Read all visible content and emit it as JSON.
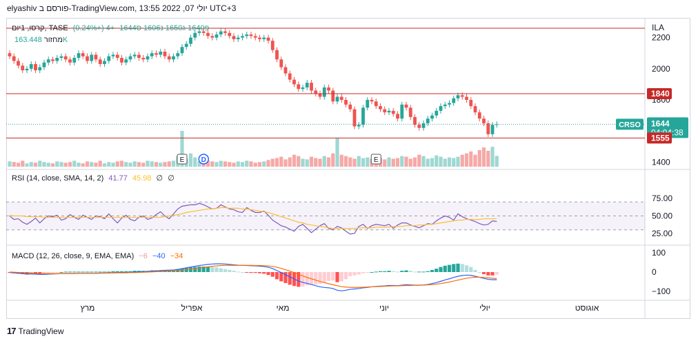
{
  "header": {
    "text": "elyashiv פורסם ב-TradingView.com, יולי 07, 2022 13:55 UTC+3"
  },
  "legend": {
    "symbol": "קרסו, 1יום, TASE",
    "ohlc": "פ1640 ג1650 נ1606 ס1644",
    "change": "+4 (+0.24%)",
    "volume_label": "מחזור",
    "volume_value": "163.448K"
  },
  "rsi_legend": {
    "label": "RSI (14, close, SMA, 14, 2)",
    "rsi": "41.77",
    "sma": "45.98",
    "e1": "∅",
    "e2": "∅"
  },
  "macd_legend": {
    "label": "MACD (12, 26, close, 9, EMA, EMA)",
    "hist": "−6",
    "macd": "−40",
    "signal": "−34"
  },
  "footer": {
    "brand": "TradingView"
  },
  "colors": {
    "up": "#26a69a",
    "down": "#ef5350",
    "rsi": "#7e57c2",
    "rsi_ma": "#fbc02d",
    "macd": "#2962ff",
    "signal": "#ff6d00",
    "hline": "#c62828"
  },
  "chart_data": [
    {
      "type": "candlestick",
      "symbol": "CRSO",
      "scale_label": "ILA",
      "y_ticks": [
        2200,
        2000,
        1800,
        1600,
        1400
      ],
      "ylim": [
        1380,
        2300
      ],
      "x_ticks": [
        "מרץ",
        "אפריל",
        "מאי",
        "יוני",
        "יולי",
        "אוגוסט"
      ],
      "horizontal_lines": [
        2260,
        1840,
        1555
      ],
      "price_labels": [
        {
          "text": "1840",
          "value": 1840,
          "kind": "line"
        },
        {
          "text": "1644",
          "sub": "04:04:38",
          "value": 1644,
          "kind": "last"
        },
        {
          "text": "1555",
          "value": 1555,
          "kind": "line"
        }
      ],
      "symbol_tag": "CRSO",
      "event_markers": [
        "E",
        "D",
        "E"
      ],
      "closes": [
        2080,
        2050,
        2020,
        1990,
        2000,
        2030,
        1990,
        2010,
        2040,
        2060,
        2050,
        2070,
        2080,
        2060,
        2040,
        2070,
        2100,
        2080,
        2050,
        2090,
        2060,
        2030,
        2050,
        2080,
        2090,
        2070,
        2040,
        2060,
        2080,
        2090,
        2070,
        2060,
        2080,
        2100,
        2090,
        2110,
        2080,
        2060,
        2080,
        2100,
        2140,
        2160,
        2200,
        2230,
        2240,
        2230,
        2210,
        2200,
        2220,
        2240,
        2230,
        2210,
        2190,
        2200,
        2210,
        2220,
        2210,
        2200,
        2190,
        2200,
        2180,
        2120,
        2060,
        2010,
        1970,
        1930,
        1900,
        1870,
        1880,
        1910,
        1860,
        1840,
        1820,
        1880,
        1860,
        1790,
        1820,
        1800,
        1770,
        1740,
        1630,
        1640,
        1750,
        1800,
        1790,
        1760,
        1740,
        1720,
        1730,
        1710,
        1680,
        1770,
        1750,
        1690,
        1640,
        1620,
        1650,
        1680,
        1700,
        1730,
        1760,
        1770,
        1780,
        1810,
        1830,
        1820,
        1800,
        1760,
        1720,
        1680,
        1650,
        1580,
        1640,
        1644
      ],
      "volumes_k": [
        80,
        70,
        60,
        90,
        50,
        70,
        60,
        90,
        70,
        60,
        50,
        80,
        70,
        60,
        70,
        90,
        60,
        50,
        80,
        70,
        60,
        90,
        50,
        70,
        60,
        80,
        90,
        70,
        60,
        80,
        70,
        60,
        90,
        80,
        70,
        60,
        70,
        80,
        90,
        160,
        540,
        120,
        200,
        140,
        80,
        100,
        90,
        80,
        70,
        90,
        80,
        70,
        60,
        80,
        70,
        90,
        80,
        60,
        70,
        80,
        100,
        120,
        130,
        150,
        110,
        140,
        180,
        160,
        120,
        110,
        150,
        130,
        120,
        160,
        140,
        200,
        430,
        180,
        160,
        140,
        120,
        160,
        130,
        140,
        120,
        150,
        130,
        110,
        140,
        120,
        130,
        160,
        150,
        120,
        140,
        180,
        160,
        120,
        130,
        170,
        150,
        120,
        140,
        130,
        150,
        180,
        200,
        230,
        180,
        250,
        290,
        240,
        300,
        163
      ],
      "volume_up_color": "#26a69a",
      "volume_down_color": "#ef5350"
    },
    {
      "type": "line",
      "name": "RSI",
      "y_ticks": [
        75,
        50,
        25
      ],
      "tick_labels": [
        "75.00",
        "50.00",
        "25.00"
      ],
      "ylim": [
        10,
        95
      ],
      "band": [
        70,
        30
      ],
      "midline": 50,
      "series": [
        {
          "name": "RSI",
          "values": [
            50,
            45,
            46,
            41,
            38,
            42,
            47,
            40,
            46,
            50,
            49,
            51,
            44,
            46,
            52,
            48,
            45,
            51,
            48,
            45,
            50,
            49,
            46,
            53,
            46,
            40,
            47,
            51,
            45,
            43,
            48,
            50,
            45,
            47,
            52,
            56,
            50,
            46,
            53,
            60,
            64,
            65,
            66,
            66,
            68,
            66,
            63,
            60,
            61,
            66,
            63,
            60,
            59,
            56,
            55,
            62,
            58,
            55,
            55,
            57,
            51,
            44,
            40,
            36,
            34,
            31,
            28,
            35,
            38,
            32,
            26,
            31,
            36,
            39,
            32,
            30,
            35,
            33,
            28,
            24,
            25,
            35,
            38,
            32,
            36,
            38,
            37,
            36,
            38,
            32,
            37,
            40,
            40,
            37,
            35,
            33,
            36,
            39,
            38,
            43,
            47,
            50,
            48,
            44,
            53,
            49,
            46,
            44,
            42,
            39,
            37,
            38,
            43,
            42
          ]
        },
        {
          "name": "RSI-based MA",
          "values": [
            51,
            50,
            50,
            50,
            49,
            49,
            49,
            49,
            48,
            48,
            48,
            48,
            48,
            48,
            48,
            48,
            48,
            48,
            48,
            48,
            48,
            48,
            48,
            48,
            48,
            48,
            48,
            48,
            48,
            48,
            48,
            48,
            48,
            48,
            48,
            48,
            49,
            50,
            51,
            52,
            53,
            55,
            56,
            57,
            58,
            59,
            60,
            60,
            61,
            62,
            62,
            61,
            61,
            61,
            60,
            60,
            59,
            58,
            57,
            56,
            55,
            53,
            51,
            49,
            47,
            45,
            43,
            41,
            40,
            38,
            37,
            36,
            35,
            34,
            33,
            32,
            32,
            32,
            32,
            32,
            32,
            33,
            33,
            33,
            33,
            34,
            34,
            34,
            34,
            35,
            35,
            35,
            36,
            36,
            36,
            37,
            37,
            38,
            38,
            39,
            40,
            41,
            42,
            43,
            44,
            44,
            45,
            45,
            45,
            45,
            46,
            46,
            46,
            46
          ]
        }
      ]
    },
    {
      "type": "line",
      "name": "MACD",
      "y_ticks": [
        100,
        0,
        -100
      ],
      "tick_labels": [
        "100",
        "0",
        "−100"
      ],
      "ylim": [
        -140,
        140
      ],
      "series": [
        {
          "name": "MACD",
          "values": [
            -2,
            -4,
            -6,
            -8,
            -10,
            -10,
            -11,
            -12,
            -12,
            -11,
            -10,
            -9,
            -8,
            -7,
            -7,
            -7,
            -6,
            -6,
            -6,
            -6,
            -6,
            -5,
            -5,
            -4,
            -3,
            -2,
            -2,
            -2,
            -1,
            0,
            1,
            2,
            3,
            5,
            6,
            8,
            9,
            10,
            11,
            14,
            18,
            22,
            26,
            30,
            34,
            37,
            40,
            42,
            43,
            43,
            42,
            40,
            38,
            36,
            35,
            34,
            33,
            32,
            31,
            29,
            25,
            18,
            8,
            -3,
            -14,
            -25,
            -36,
            -47,
            -54,
            -59,
            -65,
            -71,
            -77,
            -80,
            -82,
            -86,
            -95,
            -98,
            -95,
            -90,
            -88,
            -86,
            -82,
            -80,
            -77,
            -75,
            -73,
            -72,
            -70,
            -70,
            -71,
            -68,
            -66,
            -67,
            -68,
            -68,
            -67,
            -65,
            -60,
            -55,
            -48,
            -41,
            -35,
            -28,
            -22,
            -18,
            -16,
            -17,
            -22,
            -27,
            -33,
            -38,
            -40,
            -40
          ]
        },
        {
          "name": "Signal",
          "values": [
            0,
            -1,
            -2,
            -3,
            -4,
            -5,
            -6,
            -7,
            -8,
            -8,
            -8,
            -8,
            -8,
            -8,
            -8,
            -8,
            -7,
            -7,
            -7,
            -7,
            -7,
            -6,
            -6,
            -5,
            -5,
            -4,
            -4,
            -4,
            -3,
            -3,
            -2,
            -1,
            0,
            1,
            2,
            4,
            5,
            6,
            7,
            8,
            10,
            12,
            15,
            18,
            21,
            24,
            27,
            30,
            32,
            34,
            35,
            35,
            35,
            35,
            35,
            35,
            35,
            34,
            34,
            33,
            32,
            29,
            25,
            19,
            12,
            5,
            -3,
            -12,
            -20,
            -28,
            -35,
            -42,
            -49,
            -55,
            -61,
            -66,
            -71,
            -76,
            -78,
            -80,
            -80,
            -80,
            -79,
            -78,
            -77,
            -76,
            -75,
            -74,
            -73,
            -72,
            -72,
            -71,
            -70,
            -70,
            -69,
            -69,
            -68,
            -67,
            -65,
            -63,
            -60,
            -56,
            -52,
            -47,
            -42,
            -37,
            -32,
            -29,
            -27,
            -27,
            -28,
            -30,
            -32,
            -34
          ]
        }
      ]
    }
  ]
}
